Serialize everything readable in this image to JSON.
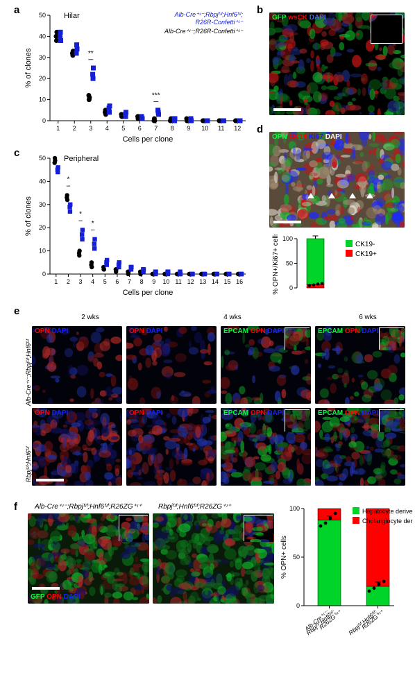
{
  "panelA": {
    "label": "a",
    "title": "Hilar",
    "xlabel": "Cells per clone",
    "ylabel": "% of clones",
    "group1_label": "Alb-Cre⁺ʴ⁻;Rbpjᶠʴᶠ;Hnf6ᶠʴᶠ;\nR26R-Confetti⁺ʴ⁻",
    "group2_label": "Alb-Cre⁺ʴ⁻;R26R-Confetti⁺ʴ⁻",
    "group1_color": "#1520d6",
    "group2_color": "#000000",
    "xlim": [
      0.5,
      12.5
    ],
    "ylim": [
      0,
      50
    ],
    "ytick_step": 10,
    "x_categories": [
      1,
      2,
      3,
      4,
      5,
      6,
      7,
      8,
      9,
      10,
      11,
      12
    ],
    "marker_size": 3.5,
    "blue": [
      [
        40,
        42,
        38
      ],
      [
        32,
        36,
        34
      ],
      [
        22,
        20,
        25
      ],
      [
        6,
        4,
        7
      ],
      [
        3,
        2,
        4
      ],
      [
        2,
        1,
        1
      ],
      [
        5,
        4,
        3
      ],
      [
        1,
        0,
        1
      ],
      [
        0,
        1,
        0
      ],
      [
        0,
        0,
        0
      ],
      [
        0,
        0,
        0
      ],
      [
        0,
        0,
        0
      ]
    ],
    "black": [
      [
        40,
        38,
        42
      ],
      [
        32,
        31,
        33
      ],
      [
        12,
        10,
        11
      ],
      [
        4,
        5,
        3
      ],
      [
        3,
        2,
        2
      ],
      [
        2,
        1,
        2
      ],
      [
        0,
        1,
        0
      ],
      [
        0,
        0,
        1
      ],
      [
        1,
        0,
        0
      ],
      [
        0,
        0,
        0
      ],
      [
        0,
        0,
        0
      ],
      [
        0,
        0,
        0
      ]
    ],
    "sig": {
      "3": "**",
      "7": "***"
    },
    "axis_fontsize": 11,
    "tick_fontsize": 9
  },
  "panelB": {
    "labels": [
      "GFP",
      "wsCK",
      "DAPI"
    ],
    "colors": [
      "#00ff3a",
      "#ff0000",
      "#3a6cff"
    ],
    "bg": "#000000"
  },
  "panelC": {
    "label": "c",
    "title": "Peripheral",
    "xlabel": "Cells per clone",
    "ylabel": "% of clones",
    "group1_color": "#1520d6",
    "group2_color": "#000000",
    "xlim": [
      0.5,
      16.5
    ],
    "ylim": [
      0,
      50
    ],
    "ytick_step": 10,
    "x_categories": [
      1,
      2,
      3,
      4,
      5,
      6,
      7,
      8,
      9,
      10,
      11,
      12,
      13,
      14,
      15,
      16
    ],
    "marker_size": 3.2,
    "blue": [
      [
        45,
        44,
        46
      ],
      [
        29,
        27,
        30
      ],
      [
        17,
        15,
        19
      ],
      [
        13,
        11,
        15
      ],
      [
        5,
        4,
        6
      ],
      [
        4,
        3,
        5
      ],
      [
        3,
        2,
        3
      ],
      [
        2,
        1,
        2
      ],
      [
        1,
        0,
        1
      ],
      [
        1,
        0,
        1
      ],
      [
        0,
        1,
        0
      ],
      [
        0,
        0,
        0
      ],
      [
        0,
        0,
        0
      ],
      [
        0,
        0,
        0
      ],
      [
        0,
        0,
        0
      ],
      [
        0,
        0,
        0
      ]
    ],
    "black": [
      [
        48,
        50,
        49
      ],
      [
        33,
        34,
        32
      ],
      [
        9,
        8,
        10
      ],
      [
        4,
        5,
        3
      ],
      [
        3,
        2,
        2
      ],
      [
        2,
        1,
        2
      ],
      [
        1,
        0,
        1
      ],
      [
        1,
        0,
        0
      ],
      [
        0,
        0,
        0
      ],
      [
        0,
        0,
        0
      ],
      [
        0,
        0,
        0
      ],
      [
        0,
        0,
        0
      ],
      [
        0,
        0,
        0
      ],
      [
        0,
        0,
        0
      ],
      [
        0,
        0,
        0
      ],
      [
        0,
        0,
        0
      ]
    ],
    "sig": {
      "1": "*",
      "2": "*",
      "3": "*",
      "4": "*"
    },
    "axis_fontsize": 11,
    "tick_fontsize": 9
  },
  "panelD": {
    "image_labels": [
      "OPN",
      "CK19",
      "Ki67",
      "DAPI"
    ],
    "image_colors": [
      "#00ff3a",
      "#ff0000",
      "#1520ff",
      "#ffffff"
    ],
    "image_bg": "#5a4a3a",
    "bar": {
      "ylabel": "% OPN+/Ki67+ cells",
      "ylim": [
        0,
        100
      ],
      "ytick_step": 50,
      "ck19neg_label": "CK19-",
      "ck19neg_color": "#00d428",
      "ck19pos_label": "CK19+",
      "ck19pos_color": "#ff0000",
      "ck19neg_mean": 93,
      "ck19pos_mean": 7,
      "points": [
        5,
        6,
        8,
        9
      ],
      "bar_width": 0.5
    }
  },
  "panelE": {
    "cols": [
      "2 wks",
      "4 wks",
      "4 wks",
      "6 wks"
    ],
    "row1": "Alb-Cre⁺ʴ⁻;Rbpjᶠʴᶠ;Hnf6ᶠʴᶠ",
    "row2": "Rbpjᶠʴᶠ;Hnf6ᶠʴᶠ",
    "overlays_a": [
      "OPN",
      "DAPI"
    ],
    "colors_a": [
      "#ff0000",
      "#1520ff"
    ],
    "overlays_b": [
      "EPCAM",
      "OPN",
      "DAPI"
    ],
    "colors_b": [
      "#00ff3a",
      "#ff0000",
      "#1520ff"
    ]
  },
  "panelF": {
    "left_title": "Alb-Cre⁺ʴ⁻;Rbpjᶠʴᶠ;Hnf6ᶠʴᶠ;R26ZG⁺ʴ⁺",
    "right_title": "Rbpjᶠʴᶠ;Hnf6ᶠʴᶠ;R26ZG⁺ʴ⁺",
    "overlay_labels": [
      "GFP",
      "OPN",
      "DAPI"
    ],
    "overlay_colors": [
      "#00ff3a",
      "#ff0000",
      "#1520ff"
    ],
    "bar": {
      "ylabel": "% OPN+ cells",
      "ylim": [
        0,
        100
      ],
      "ytick_step": 50,
      "hep_label": "Hepatocyte derived",
      "hep_color": "#00d428",
      "chol_label": "Cholangiocyte derived",
      "chol_color": "#ff0000",
      "cats": [
        "Alb-Cre⁺ʴ⁻;\nRbpjᶠʴᶠ;Hnf6ᶠʴᶠ;\nR26ZG⁺ʴ⁺",
        "Rbpjᶠʴᶠ;Hnf6ᶠʴᶠ;\nR26ZG⁺ʴ⁺"
      ],
      "values": [
        {
          "hep": 88,
          "chol": 12,
          "pts": [
            82,
            85,
            90,
            95
          ]
        },
        {
          "hep": 20,
          "chol": 80,
          "pts": [
            15,
            18,
            22,
            25
          ]
        }
      ],
      "bar_width": 0.55
    }
  }
}
